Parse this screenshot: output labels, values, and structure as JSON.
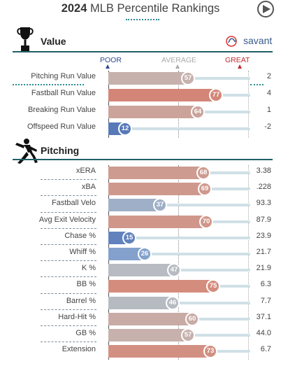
{
  "header": {
    "year": "2024",
    "title": "MLB Percentile Rankings"
  },
  "scale": {
    "poor_label": "POOR",
    "average_label": "AVERAGE",
    "great_label": "GREAT",
    "poor_color": "#2b4b8c",
    "average_color": "#a9a9a9",
    "great_color": "#c0282e"
  },
  "brand": {
    "name": "savant",
    "color": "#3a5a8a"
  },
  "sections": [
    {
      "title": "Value",
      "icon": "trophy-icon"
    },
    {
      "title": "Pitching",
      "icon": "pitcher-icon"
    }
  ],
  "chart_data": {
    "type": "bar",
    "title": "2024 MLB Percentile Rankings",
    "xlim": [
      0,
      100
    ],
    "groups": [
      {
        "name": "Value",
        "metrics": [
          {
            "label": "Pitching Run Value",
            "percentile": 57,
            "value": "2"
          },
          {
            "label": "Fastball Run Value",
            "percentile": 77,
            "value": "4"
          },
          {
            "label": "Breaking Run Value",
            "percentile": 64,
            "value": "1"
          },
          {
            "label": "Offspeed Run Value",
            "percentile": 12,
            "value": "-2"
          }
        ]
      },
      {
        "name": "Pitching",
        "metrics": [
          {
            "label": "xERA",
            "percentile": 68,
            "value": "3.38"
          },
          {
            "label": "xBA",
            "percentile": 69,
            "value": ".228"
          },
          {
            "label": "Fastball Velo",
            "percentile": 37,
            "value": "93.3"
          },
          {
            "label": "Avg Exit Velocity",
            "percentile": 70,
            "value": "87.9"
          },
          {
            "label": "Chase %",
            "percentile": 15,
            "value": "23.9"
          },
          {
            "label": "Whiff %",
            "percentile": 26,
            "value": "21.7"
          },
          {
            "label": "K %",
            "percentile": 47,
            "value": "21.9"
          },
          {
            "label": "BB %",
            "percentile": 75,
            "value": "6.3"
          },
          {
            "label": "Barrel %",
            "percentile": 46,
            "value": "7.7"
          },
          {
            "label": "Hard-Hit %",
            "percentile": 60,
            "value": "37.1"
          },
          {
            "label": "GB %",
            "percentile": 57,
            "value": "44.0"
          },
          {
            "label": "Extension",
            "percentile": 73,
            "value": "6.7"
          }
        ]
      }
    ]
  }
}
